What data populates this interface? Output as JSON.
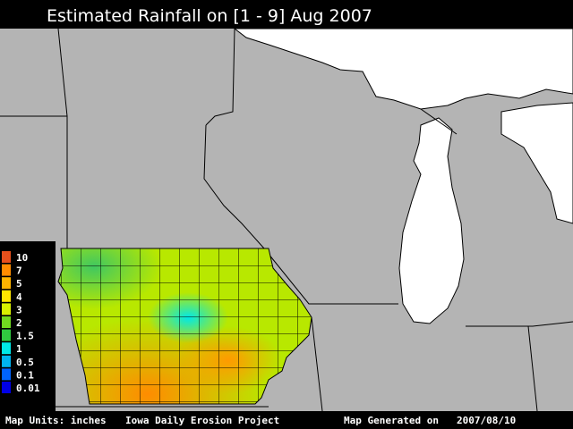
{
  "header": {
    "title": "Estimated Rainfall on [1 - 9] Aug 2007"
  },
  "legend": {
    "items": [
      {
        "label": "10",
        "color": "#e8501c"
      },
      {
        "label": "7",
        "color": "#ff8c00"
      },
      {
        "label": "5",
        "color": "#ffb400"
      },
      {
        "label": "4",
        "color": "#ffe600"
      },
      {
        "label": "3",
        "color": "#d8f000"
      },
      {
        "label": "2",
        "color": "#70d820"
      },
      {
        "label": "1.5",
        "color": "#30c840"
      },
      {
        "label": "1",
        "color": "#00e8e8"
      },
      {
        "label": "0.5",
        "color": "#00b4f0"
      },
      {
        "label": "0.1",
        "color": "#0064ff"
      },
      {
        "label": "0.01",
        "color": "#0000e6"
      }
    ]
  },
  "footer": {
    "units": "Map Units: inches",
    "project": "Iowa Daily Erosion Project",
    "generated_label": "Map Generated on",
    "generated_date": "2007/08/10"
  }
}
